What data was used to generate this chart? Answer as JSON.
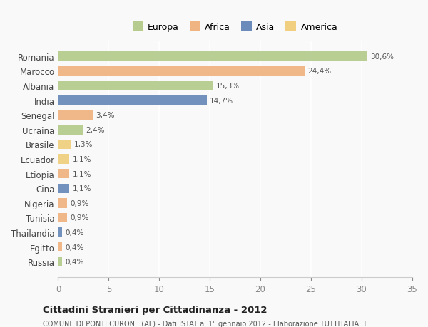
{
  "countries": [
    "Romania",
    "Marocco",
    "Albania",
    "India",
    "Senegal",
    "Ucraina",
    "Brasile",
    "Ecuador",
    "Etiopia",
    "Cina",
    "Nigeria",
    "Tunisia",
    "Thailandia",
    "Egitto",
    "Russia"
  ],
  "values": [
    30.6,
    24.4,
    15.3,
    14.7,
    3.4,
    2.4,
    1.3,
    1.1,
    1.1,
    1.1,
    0.9,
    0.9,
    0.4,
    0.4,
    0.4
  ],
  "labels": [
    "30,6%",
    "24,4%",
    "15,3%",
    "14,7%",
    "3,4%",
    "2,4%",
    "1,3%",
    "1,1%",
    "1,1%",
    "1,1%",
    "0,9%",
    "0,9%",
    "0,4%",
    "0,4%",
    "0,4%"
  ],
  "continents": [
    "Europa",
    "Africa",
    "Europa",
    "Asia",
    "Africa",
    "Europa",
    "America",
    "America",
    "Africa",
    "Asia",
    "Africa",
    "Africa",
    "Asia",
    "Africa",
    "Europa"
  ],
  "colors": {
    "Europa": "#b5cc8e",
    "Africa": "#f0b482",
    "Asia": "#6b8cba",
    "America": "#f0d080"
  },
  "legend_order": [
    "Europa",
    "Africa",
    "Asia",
    "America"
  ],
  "title": "Cittadini Stranieri per Cittadinanza - 2012",
  "subtitle": "COMUNE DI PONTECURONE (AL) - Dati ISTAT al 1° gennaio 2012 - Elaborazione TUTTITALIA.IT",
  "xlim": [
    0,
    35
  ],
  "xticks": [
    0,
    5,
    10,
    15,
    20,
    25,
    30,
    35
  ],
  "background_color": "#f9f9f9",
  "grid_color": "#ffffff",
  "bar_height": 0.65
}
